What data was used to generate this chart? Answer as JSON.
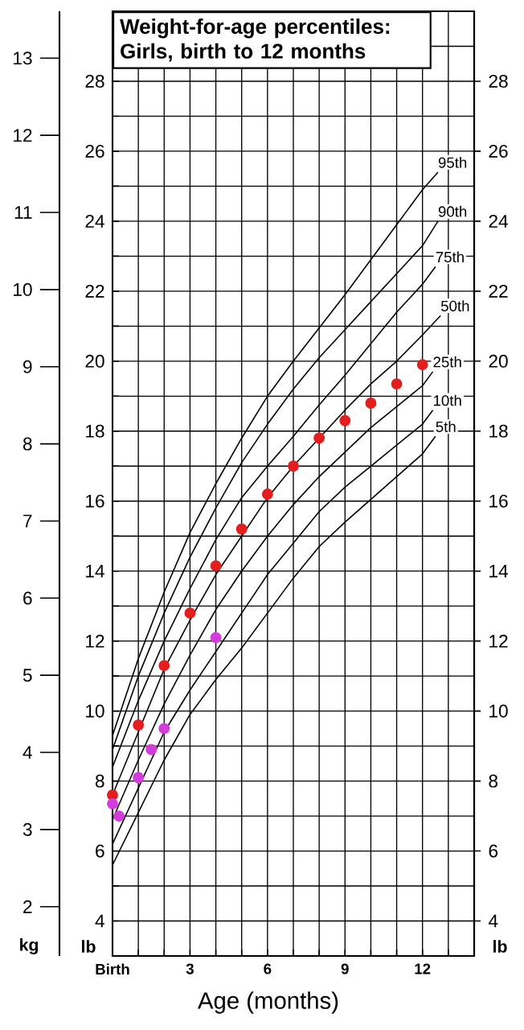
{
  "chart_data": {
    "type": "line",
    "title": "Weight-for-age percentiles: Girls, birth to 12 months",
    "xlabel": "Age (months)",
    "ylabel": "lb",
    "y2label": "lb",
    "y3label": "kg",
    "xlim": [
      0,
      14
    ],
    "ylim": [
      3,
      30
    ],
    "y2lim": [
      3,
      30
    ],
    "y3lim": [
      1.361,
      13.608
    ],
    "xticks": [
      {
        "value": 0,
        "label": "Birth"
      },
      {
        "value": 1,
        "label": null
      },
      {
        "value": 2,
        "label": null
      },
      3,
      {
        "value": 4,
        "label": null
      },
      {
        "value": 5,
        "label": null
      },
      6,
      {
        "value": 7,
        "label": null
      },
      {
        "value": 8,
        "label": null
      },
      9,
      {
        "value": 10,
        "label": null
      },
      {
        "value": 11,
        "label": null
      },
      12,
      {
        "value": 13,
        "label": null
      }
    ],
    "yticks": [
      4,
      {
        "value": 5,
        "label": null
      },
      6,
      {
        "value": 7,
        "label": null
      },
      8,
      {
        "value": 9,
        "label": null
      },
      10,
      {
        "value": 11,
        "label": null
      },
      12,
      {
        "value": 13,
        "label": null
      },
      14,
      {
        "value": 15,
        "label": null
      },
      16,
      {
        "value": 17,
        "label": null
      },
      18,
      {
        "value": 19,
        "label": null
      },
      20,
      {
        "value": 21,
        "label": null
      },
      22,
      {
        "value": 23,
        "label": null
      },
      24,
      {
        "value": 25,
        "label": null
      },
      26,
      {
        "value": 27,
        "label": null
      },
      28,
      {
        "value": 29,
        "label": null
      }
    ],
    "y2ticks": [
      4,
      6,
      8,
      10,
      12,
      14,
      16,
      18,
      20,
      22,
      24,
      26,
      28
    ],
    "y3ticks": [
      2,
      3,
      4,
      5,
      6,
      7,
      8,
      9,
      10,
      11,
      12,
      13
    ],
    "grid": true,
    "series": [
      {
        "name": "95th",
        "color": "#000000",
        "x": [
          0,
          1,
          2,
          3,
          4,
          5,
          6,
          7,
          8,
          9,
          10,
          11,
          12,
          12.6
        ],
        "values": [
          9.3,
          11.5,
          13.4,
          15.1,
          16.5,
          17.8,
          19.0,
          20.0,
          20.95,
          21.9,
          22.9,
          23.9,
          24.9,
          25.4
        ]
      },
      {
        "name": "90th",
        "color": "#000000",
        "x": [
          0,
          1,
          2,
          3,
          4,
          5,
          6,
          7,
          8,
          9,
          10,
          11,
          12,
          12.6
        ],
        "values": [
          8.9,
          11.0,
          12.8,
          14.4,
          15.8,
          17.1,
          18.2,
          19.2,
          20.1,
          20.9,
          21.7,
          22.5,
          23.3,
          24.0
        ]
      },
      {
        "name": "75th",
        "color": "#000000",
        "x": [
          0,
          1,
          2,
          3,
          4,
          5,
          6,
          7,
          8,
          9,
          10,
          11,
          12,
          12.5
        ],
        "values": [
          8.4,
          10.3,
          12.0,
          13.5,
          14.9,
          16.1,
          17.0,
          17.85,
          18.75,
          19.6,
          20.5,
          21.4,
          22.2,
          22.7
        ]
      },
      {
        "name": "50th",
        "color": "#000000",
        "x": [
          0,
          1,
          2,
          3,
          4,
          5,
          6,
          7,
          8,
          9,
          10,
          11,
          12,
          12.7
        ],
        "values": [
          7.6,
          9.4,
          11.2,
          12.6,
          13.9,
          15.0,
          16.1,
          17.0,
          17.8,
          18.6,
          19.35,
          20.0,
          20.75,
          21.3
        ]
      },
      {
        "name": "25th",
        "color": "#000000",
        "x": [
          0,
          1,
          2,
          3,
          4,
          5,
          6,
          7,
          8,
          9,
          10,
          11,
          12,
          12.4
        ],
        "values": [
          6.9,
          8.6,
          10.2,
          11.6,
          12.9,
          14.0,
          15.0,
          15.9,
          16.7,
          17.4,
          18.1,
          18.7,
          19.3,
          19.7
        ]
      },
      {
        "name": "10th",
        "color": "#000000",
        "x": [
          0,
          1,
          2,
          3,
          4,
          5,
          6,
          7,
          8,
          9,
          10,
          11,
          12,
          12.4
        ],
        "values": [
          6.2,
          7.8,
          9.4,
          10.6,
          11.7,
          12.8,
          13.9,
          14.8,
          15.7,
          16.4,
          17.0,
          17.6,
          18.2,
          18.6
        ]
      },
      {
        "name": "5th",
        "color": "#000000",
        "x": [
          0,
          1,
          2,
          3,
          4,
          5,
          6,
          7,
          8,
          9,
          10,
          11,
          12,
          12.5
        ],
        "values": [
          5.6,
          7.1,
          8.6,
          9.9,
          10.9,
          11.8,
          12.8,
          13.8,
          14.7,
          15.4,
          16.05,
          16.7,
          17.35,
          17.85
        ]
      },
      {
        "type": "scatter",
        "marker": "circle",
        "color": "#e41e1e",
        "x": [
          0,
          1,
          2,
          3,
          4,
          5,
          6,
          7,
          8,
          9,
          10,
          11,
          12
        ],
        "values": [
          7.6,
          9.6,
          11.3,
          12.8,
          14.15,
          15.2,
          16.2,
          17.0,
          17.8,
          18.3,
          18.8,
          19.35,
          19.9
        ]
      },
      {
        "type": "scatter",
        "marker": "circle",
        "color": "#d23cdc",
        "x": [
          0,
          0.25,
          1,
          1.5,
          2,
          4
        ],
        "values": [
          7.35,
          7.0,
          8.1,
          8.9,
          9.5,
          12.1
        ]
      }
    ]
  }
}
